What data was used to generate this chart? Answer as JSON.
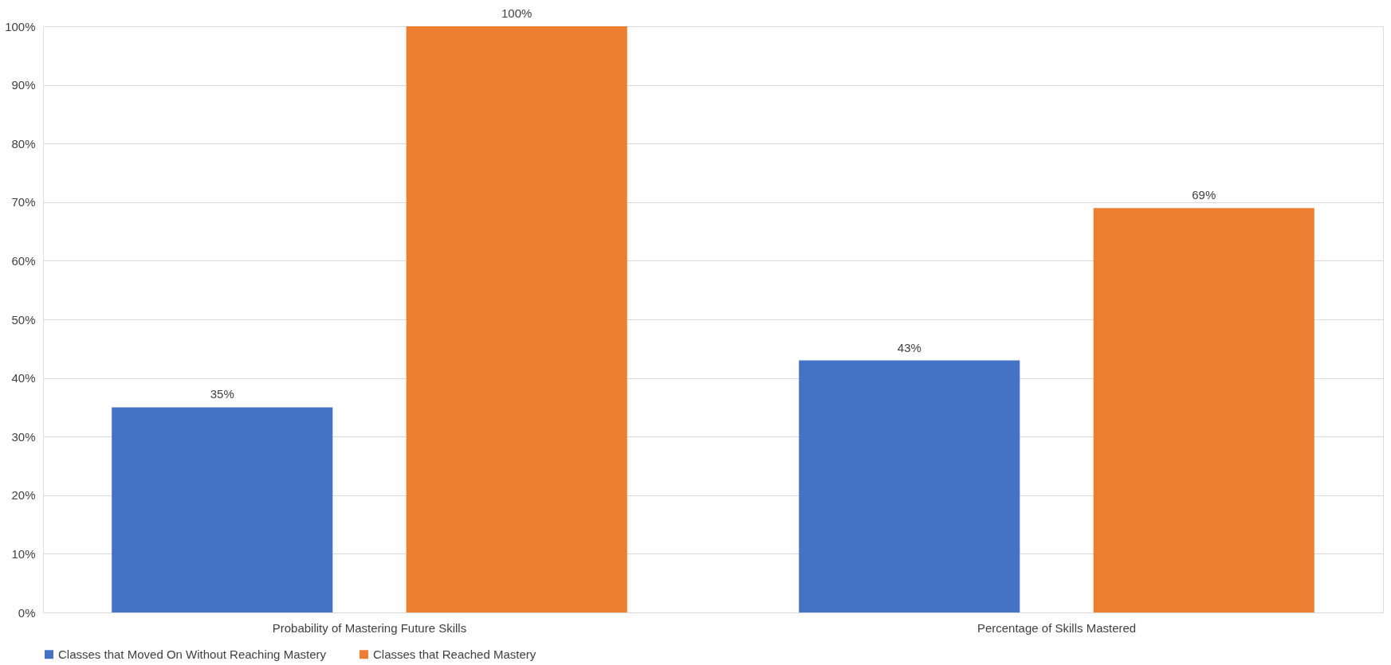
{
  "chart_data": {
    "type": "bar",
    "categories": [
      "Probability of Mastering Future Skills",
      "Percentage of Skills Mastered"
    ],
    "series": [
      {
        "name": "Classes that Moved On Without Reaching Mastery",
        "color": "#4472c4",
        "values": [
          35,
          43
        ],
        "value_labels": [
          "35%",
          "43%"
        ]
      },
      {
        "name": "Classes that Reached Mastery",
        "color": "#ed7d31",
        "values": [
          100,
          69
        ],
        "value_labels": [
          "100%",
          "69%"
        ]
      }
    ],
    "ylim": [
      0,
      100
    ],
    "yticks": [
      {
        "value": 0,
        "label": "0%"
      },
      {
        "value": 10,
        "label": "10%"
      },
      {
        "value": 20,
        "label": "20%"
      },
      {
        "value": 30,
        "label": "30%"
      },
      {
        "value": 40,
        "label": "40%"
      },
      {
        "value": 50,
        "label": "50%"
      },
      {
        "value": 60,
        "label": "60%"
      },
      {
        "value": 70,
        "label": "70%"
      },
      {
        "value": 80,
        "label": "80%"
      },
      {
        "value": 90,
        "label": "90%"
      },
      {
        "value": 100,
        "label": "100%"
      }
    ],
    "grid": "y",
    "legend": "bottom"
  }
}
